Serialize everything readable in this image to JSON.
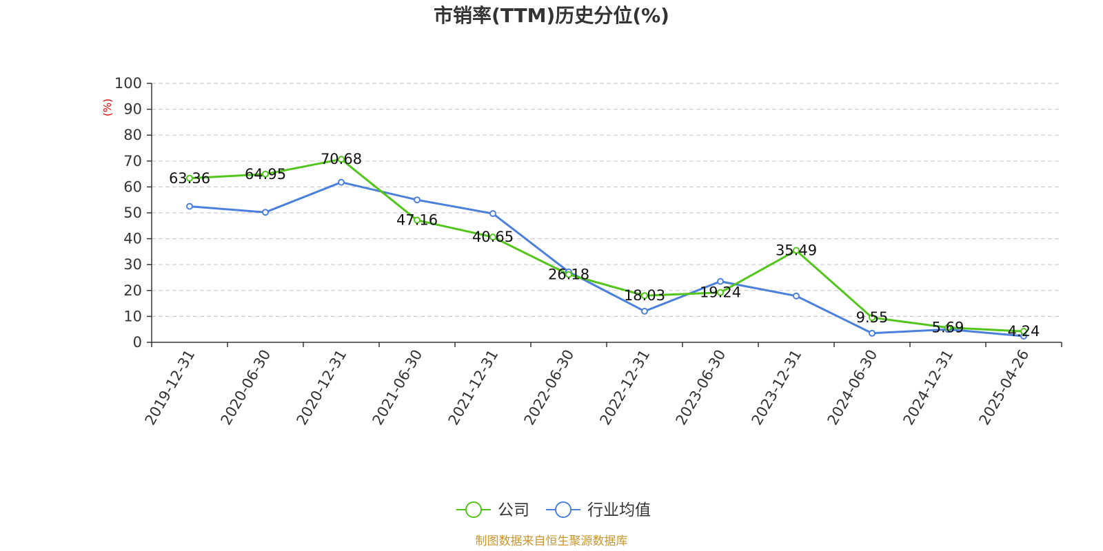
{
  "chart_data": {
    "type": "line",
    "title": "市销率(TTM)历史分位(%)",
    "ylabel": "(%)",
    "xlabel": "",
    "ylim": [
      0,
      100
    ],
    "yticks": [
      0,
      10,
      20,
      30,
      40,
      50,
      60,
      70,
      80,
      90,
      100
    ],
    "categories": [
      "2019-12-31",
      "2020-06-30",
      "2020-12-31",
      "2021-06-30",
      "2021-12-31",
      "2022-06-30",
      "2022-12-31",
      "2023-06-30",
      "2023-12-31",
      "2024-06-30",
      "2024-12-31",
      "2025-04-26"
    ],
    "series": [
      {
        "name": "公司",
        "color": "#52c41a",
        "values": [
          63.36,
          64.95,
          70.68,
          47.16,
          40.65,
          26.18,
          18.03,
          19.24,
          35.49,
          9.55,
          5.69,
          4.24
        ],
        "labels": [
          "63.36",
          "64.95",
          "70.68",
          "47.16",
          "40.65",
          "26.18",
          "18.03",
          "19.24",
          "35.49",
          "9.55",
          "5.69",
          "4.24"
        ]
      },
      {
        "name": "行业均值",
        "color": "#4a7fdc",
        "values": [
          52.5,
          50.2,
          61.8,
          55.0,
          49.7,
          27.2,
          12.0,
          23.5,
          17.9,
          3.5,
          5.0,
          2.4
        ]
      }
    ],
    "grid": true,
    "legend_position": "bottom-center",
    "source": "制图数据来自恒生聚源数据库"
  }
}
